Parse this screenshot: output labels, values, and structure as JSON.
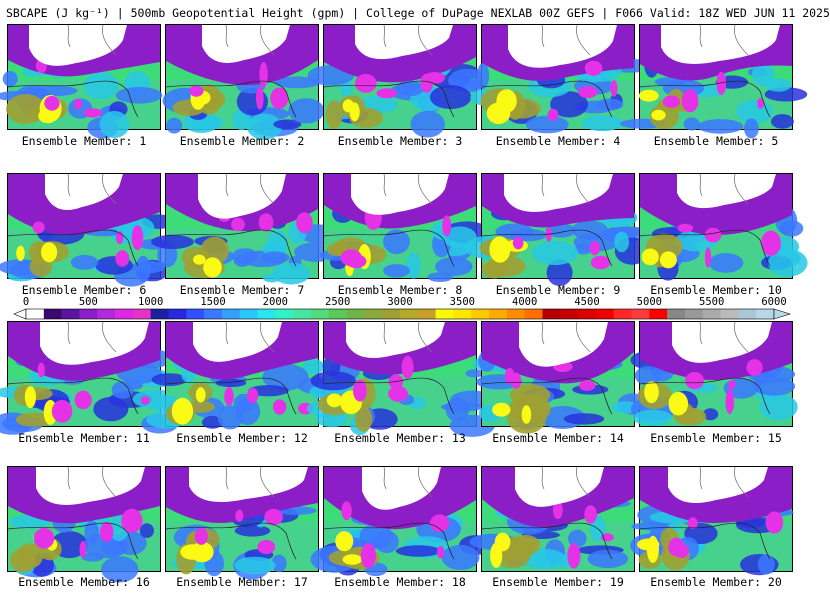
{
  "header": {
    "title": "SBCAPE (J kg⁻¹) | 500mb Geopotential Height (gpm) | College of DuPage NEXLAB 00Z GEFS | F066 Valid: 18Z WED JUN 11 2025"
  },
  "panels": [
    {
      "label": "Ensemble Member: 1"
    },
    {
      "label": "Ensemble Member: 2"
    },
    {
      "label": "Ensemble Member: 3"
    },
    {
      "label": "Ensemble Member: 4"
    },
    {
      "label": "Ensemble Member: 5"
    },
    {
      "label": "Ensemble Member: 6"
    },
    {
      "label": "Ensemble Member: 7"
    },
    {
      "label": "Ensemble Member: 8"
    },
    {
      "label": "Ensemble Member: 9"
    },
    {
      "label": "Ensemble Member: 10"
    },
    {
      "label": "Ensemble Member: 11"
    },
    {
      "label": "Ensemble Member: 12"
    },
    {
      "label": "Ensemble Member: 13"
    },
    {
      "label": "Ensemble Member: 14"
    },
    {
      "label": "Ensemble Member: 15"
    },
    {
      "label": "Ensemble Member: 16"
    },
    {
      "label": "Ensemble Member: 17"
    },
    {
      "label": "Ensemble Member: 18"
    },
    {
      "label": "Ensemble Member: 19"
    },
    {
      "label": "Ensemble Member: 20"
    }
  ],
  "colorbar": {
    "tick_labels": [
      "0",
      "500",
      "1000",
      "1500",
      "2000",
      "2500",
      "3000",
      "3500",
      "4000",
      "4500",
      "5000",
      "5500",
      "6000"
    ],
    "colors": [
      "#ffffff",
      "#3c0a6e",
      "#5a14a0",
      "#8c1ec8",
      "#b428dc",
      "#dc28e6",
      "#e632c8",
      "#1e1ea0",
      "#2828dc",
      "#3250ff",
      "#3c78ff",
      "#32a0ff",
      "#28c8ff",
      "#28e6f0",
      "#32f0c8",
      "#46e6a0",
      "#50dc78",
      "#5ac85a",
      "#6eb446",
      "#8caa3c",
      "#a0a032",
      "#b4aa28",
      "#c8a028",
      "#fafa00",
      "#ffe600",
      "#ffc800",
      "#ffaa00",
      "#ff8c00",
      "#ff6e00",
      "#b40000",
      "#c80000",
      "#dc0000",
      "#f00000",
      "#ff2828",
      "#ff3c3c",
      "#ff0000",
      "#888888",
      "#999999",
      "#aaaaaa",
      "#bbbbbb",
      "#a8c8d8",
      "#b8d8e8"
    ]
  },
  "colors": {
    "land": "#ffffff",
    "magenta": "#e632e6",
    "purple": "#8c1ec8",
    "deep_blue": "#2832dc",
    "blue": "#3c78ff",
    "cyan": "#28c8e6",
    "green": "#3cdc78",
    "olive": "#a0a032",
    "yellow": "#fafa14"
  }
}
